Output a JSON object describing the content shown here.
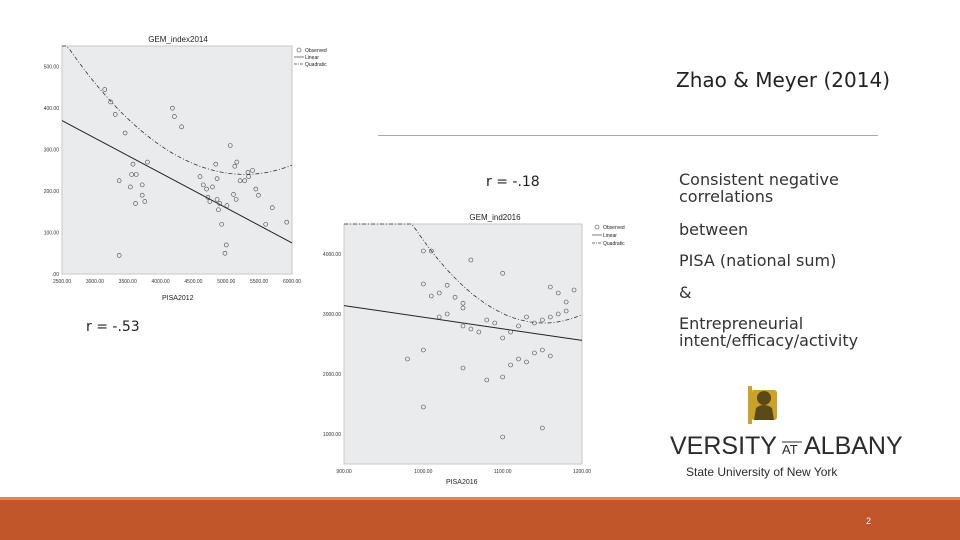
{
  "slide": {
    "title": "Zhao & Meyer (2014)",
    "r1": "r = -.53",
    "r2": "r = -.18",
    "bullets": [
      "Consistent negative correlations",
      "between",
      "PISA (national sum)",
      "&",
      "Entrepreneurial intent/efficacy/activity"
    ],
    "page_number": "2"
  },
  "logo": {
    "wordmark": "UNIVERSITY AT ALBANY",
    "subtitle": "State University of New York",
    "color": "#c9a227"
  },
  "colors": {
    "footer": "#c0562a",
    "footer_line": "#e58a3a",
    "plot_bg": "#e9ebec"
  },
  "chart_data": [
    {
      "type": "scatter",
      "title": "GEM_index2014",
      "xlabel": "PISA2012",
      "ylabel": "",
      "x_ticks": [
        "2500.00",
        "3000.00",
        "3500.00",
        "4000.00",
        "4500.00",
        "5000.00",
        "5500.00",
        "6000.00"
      ],
      "y_ticks": [
        ".00",
        "100.00",
        "200.00",
        "300.00",
        "400.00",
        "500.00"
      ],
      "xlim": [
        2500,
        6000
      ],
      "ylim": [
        0,
        550
      ],
      "legend": [
        "Observed",
        "Linear",
        "Quadratic"
      ],
      "points": [
        [
          3150,
          445
        ],
        [
          3240,
          415
        ],
        [
          3310,
          385
        ],
        [
          3460,
          340
        ],
        [
          3580,
          265
        ],
        [
          3560,
          240
        ],
        [
          3720,
          215
        ],
        [
          3720,
          190
        ],
        [
          3760,
          175
        ],
        [
          3540,
          210
        ],
        [
          3630,
          240
        ],
        [
          3620,
          170
        ],
        [
          3370,
          225
        ],
        [
          3800,
          270
        ],
        [
          4180,
          400
        ],
        [
          4210,
          380
        ],
        [
          4320,
          355
        ],
        [
          4600,
          235
        ],
        [
          4650,
          215
        ],
        [
          4700,
          205
        ],
        [
          4720,
          185
        ],
        [
          4750,
          175
        ],
        [
          4860,
          180
        ],
        [
          4900,
          170
        ],
        [
          4880,
          155
        ],
        [
          5010,
          165
        ],
        [
          5150,
          180
        ],
        [
          5110,
          192
        ],
        [
          5210,
          225
        ],
        [
          5280,
          225
        ],
        [
          5340,
          235
        ],
        [
          5400,
          250
        ],
        [
          5160,
          270
        ],
        [
          5060,
          310
        ],
        [
          5600,
          120
        ],
        [
          5700,
          160
        ],
        [
          5920,
          125
        ],
        [
          5490,
          190
        ],
        [
          5450,
          205
        ],
        [
          5330,
          245
        ],
        [
          4930,
          120
        ],
        [
          5000,
          70
        ],
        [
          4840,
          265
        ],
        [
          4790,
          210
        ],
        [
          3370,
          45
        ],
        [
          4980,
          50
        ],
        [
          4860,
          230
        ],
        [
          5130,
          260
        ]
      ],
      "linear": {
        "from": [
          2500,
          370
        ],
        "to": [
          6000,
          75
        ]
      },
      "quadratic": {
        "a": 4.25e-05,
        "b": -0.4487,
        "c": 1424.6
      }
    },
    {
      "type": "scatter",
      "title": "GEM_ind2016",
      "xlabel": "PISA2016",
      "ylabel": "",
      "x_ticks": [
        "900.00",
        "1000.00",
        "1100.00",
        "1200.00"
      ],
      "y_ticks": [
        "1000.00",
        "2000.00",
        "3000.00",
        "4000.00"
      ],
      "xlim": [
        900,
        1200
      ],
      "ylim": [
        500,
        4500
      ],
      "legend": [
        "Observed",
        "Linear",
        "Quadratic"
      ],
      "points": [
        [
          1000,
          4050
        ],
        [
          1010,
          4050
        ],
        [
          1060,
          3900
        ],
        [
          1100,
          3680
        ],
        [
          1000,
          3500
        ],
        [
          1010,
          3300
        ],
        [
          1020,
          3350
        ],
        [
          1030,
          3480
        ],
        [
          1040,
          3280
        ],
        [
          1050,
          3180
        ],
        [
          1030,
          3000
        ],
        [
          1020,
          2950
        ],
        [
          1050,
          2800
        ],
        [
          1060,
          2750
        ],
        [
          1070,
          2700
        ],
        [
          1080,
          2900
        ],
        [
          1090,
          2850
        ],
        [
          1100,
          2600
        ],
        [
          1110,
          2700
        ],
        [
          1120,
          2800
        ],
        [
          1130,
          2950
        ],
        [
          1140,
          2850
        ],
        [
          1150,
          2900
        ],
        [
          1160,
          2950
        ],
        [
          1170,
          3000
        ],
        [
          1180,
          3050
        ],
        [
          1180,
          3200
        ],
        [
          1170,
          3350
        ],
        [
          1160,
          3450
        ],
        [
          1190,
          3400
        ],
        [
          1160,
          2300
        ],
        [
          1150,
          2400
        ],
        [
          1140,
          2350
        ],
        [
          1130,
          2200
        ],
        [
          1120,
          2250
        ],
        [
          1110,
          2150
        ],
        [
          1050,
          2100
        ],
        [
          1000,
          2400
        ],
        [
          980,
          2250
        ],
        [
          1100,
          1950
        ],
        [
          1080,
          1900
        ],
        [
          1000,
          1450
        ],
        [
          1100,
          950
        ],
        [
          1150,
          1100
        ],
        [
          1050,
          3100
        ]
      ],
      "linear": {
        "from": [
          900,
          3140
        ],
        "to": [
          1200,
          2560
        ]
      },
      "quadratic": {
        "a": 0.06,
        "b": -138.2,
        "c": 82430
      }
    }
  ]
}
